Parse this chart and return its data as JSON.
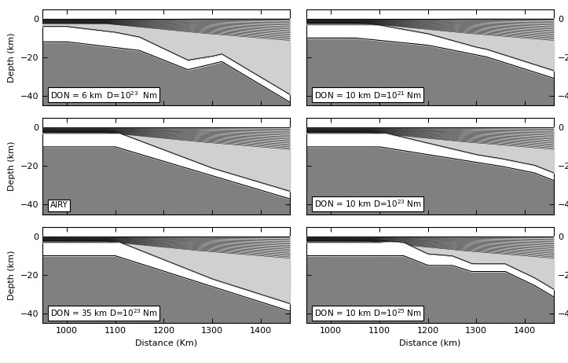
{
  "x_min": 950,
  "x_max": 1460,
  "y_min": -45,
  "y_max": 5,
  "yticks": [
    0,
    -20,
    -40
  ],
  "xticks": [
    1000,
    1100,
    1200,
    1300,
    1400
  ],
  "xlabel_left": "Distance (Km)",
  "xlabel_right": "Distance (km)",
  "ylabel": "Depth (km)",
  "labels": [
    "DON = 6 km  D=10$^{23}$  Nm",
    "DON = 10 km D=10$^{21}$ Nm",
    "AIRY",
    "DON = 10 km D=10$^{23}$ Nm",
    "DON = 35 km D=10$^{23}$ Nm",
    "DON = 10 km D=10$^{25}$ Nm"
  ],
  "color_mantle": "#808080",
  "color_lower_crust": "#ffffff",
  "color_upper_crust": "#b0b0b0",
  "color_sediment": "#d0d0d0",
  "color_top_sed": "#e8e8e8",
  "color_bg": "#ffffff"
}
